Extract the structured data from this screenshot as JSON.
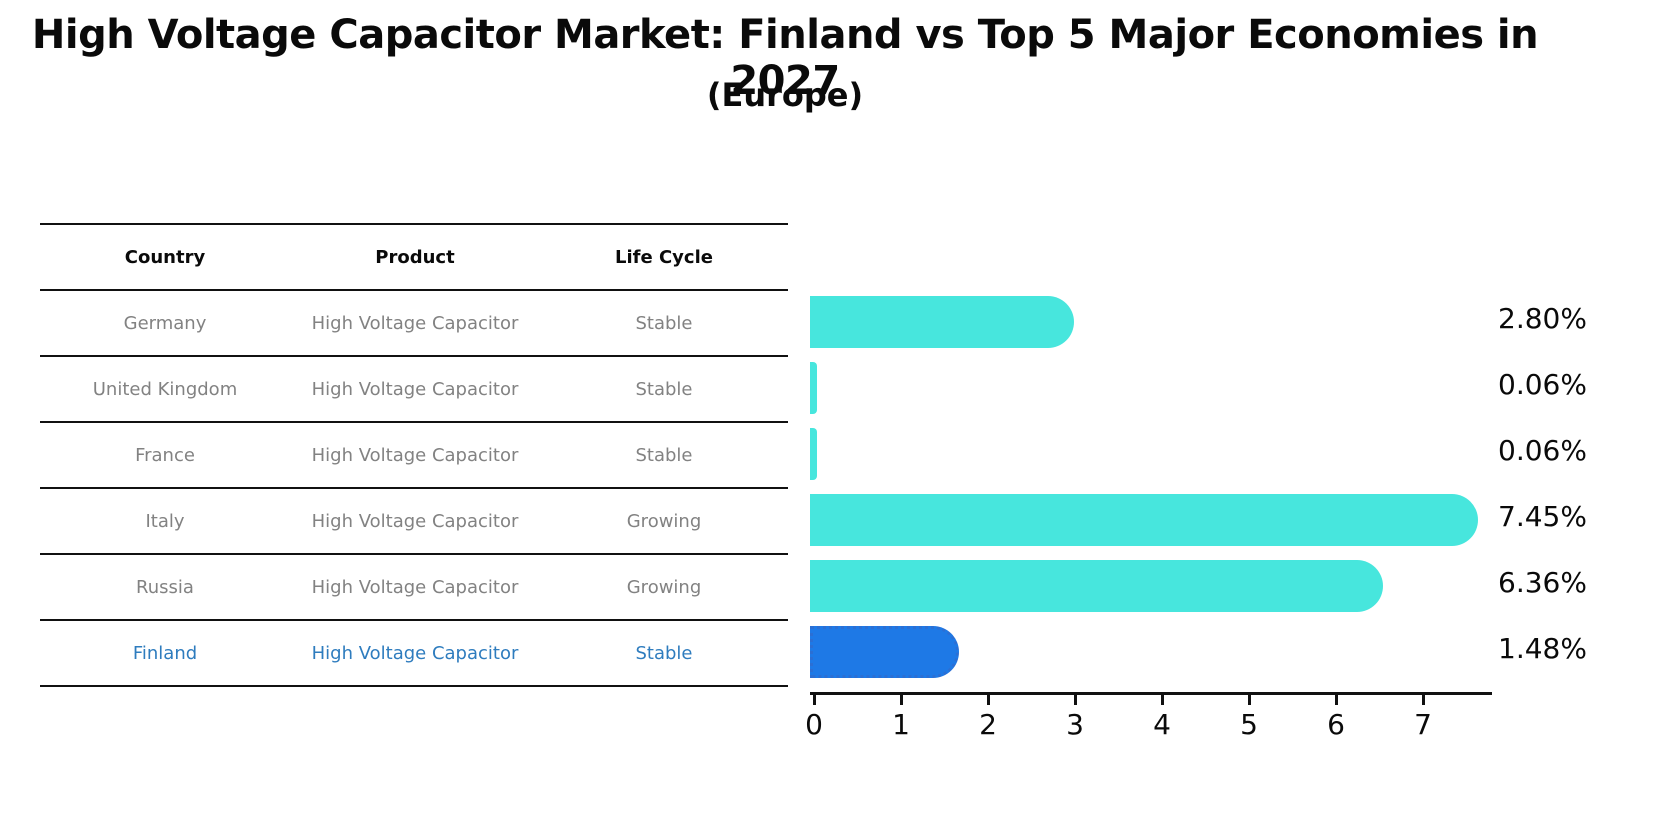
{
  "title": "High Voltage Capacitor Market: Finland vs Top 5 Major Economies in 2027",
  "subtitle": "(Europe)",
  "table": {
    "headers": [
      "Country",
      "Product",
      "Life Cycle"
    ],
    "rows": [
      {
        "country": "Germany",
        "product": "High Voltage Capacitor",
        "life_cycle": "Stable",
        "highlight": false
      },
      {
        "country": "United Kingdom",
        "product": "High Voltage Capacitor",
        "life_cycle": "Stable",
        "highlight": false
      },
      {
        "country": "France",
        "product": "High Voltage Capacitor",
        "life_cycle": "Stable",
        "highlight": false
      },
      {
        "country": "Italy",
        "product": "High Voltage Capacitor",
        "life_cycle": "Growing",
        "highlight": false
      },
      {
        "country": "Russia",
        "product": "High Voltage Capacitor",
        "life_cycle": "Growing",
        "highlight": false
      },
      {
        "country": "Finland",
        "product": "High Voltage Capacitor",
        "life_cycle": "Stable",
        "highlight": true
      }
    ]
  },
  "chart_data": {
    "type": "bar",
    "orientation": "horizontal",
    "title": "High Voltage Capacitor Market: Finland vs Top 5 Major Economies in 2027",
    "subtitle": "(Europe)",
    "categories": [
      "Germany",
      "United Kingdom",
      "France",
      "Italy",
      "Russia",
      "Finland"
    ],
    "values": [
      2.8,
      0.06,
      0.06,
      7.45,
      6.36,
      1.48
    ],
    "value_labels": [
      "2.80%",
      "0.06%",
      "0.06%",
      "7.45%",
      "6.36%",
      "1.48%"
    ],
    "xlabel": "",
    "ylabel": "",
    "xlim": [
      0,
      7.8
    ],
    "x_ticks": [
      0,
      1,
      2,
      3,
      4,
      5,
      6,
      7
    ],
    "grid": false,
    "legend": "none",
    "bar_color": "#47e6dd",
    "highlight_bar_color": "#1e79e6",
    "highlight_index": 5
  },
  "colors": {
    "highlight_text": "#2e7cbe",
    "table_text": "#828282",
    "heading_text": "#0a0a0a",
    "axis": "#111111"
  }
}
